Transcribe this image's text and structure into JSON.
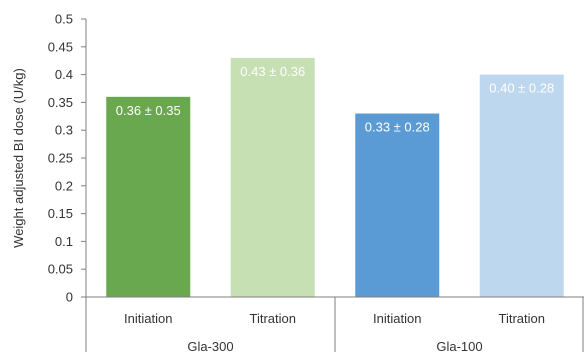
{
  "chart_data": {
    "type": "bar",
    "ylabel": "Weight adjusted BI dose (U/kg)",
    "ylim": [
      0,
      0.5
    ],
    "yticks": [
      "0",
      "0.05",
      "0.1",
      "0.15",
      "0.2",
      "0.25",
      "0.3",
      "0.35",
      "0.4",
      "0.45",
      "0.5"
    ],
    "grid": false,
    "groups": [
      {
        "name": "Gla-300",
        "bars": [
          {
            "category": "Initiation",
            "value": 0.36,
            "label": "0.36 ± 0.35",
            "color": "#6aa84f"
          },
          {
            "category": "Titration",
            "value": 0.43,
            "label": "0.43 ± 0.36",
            "color": "#c6e0b4"
          }
        ]
      },
      {
        "name": "Gla-100",
        "bars": [
          {
            "category": "Initiation",
            "value": 0.33,
            "label": "0.33 ± 0.28",
            "color": "#5b9bd5"
          },
          {
            "category": "Titration",
            "value": 0.4,
            "label": "0.40 ± 0.28",
            "color": "#bdd7ee"
          }
        ]
      }
    ]
  }
}
